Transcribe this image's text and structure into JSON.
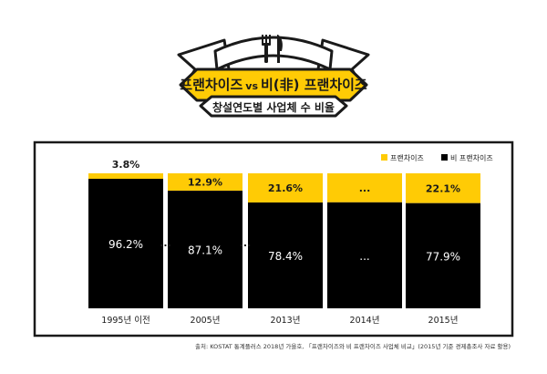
{
  "banner": {
    "line1_a": "프랜차이즈",
    "line1_vs": "vs",
    "line1_b": "비(非) 프랜차이즈",
    "subtitle": "창설연도별 사업체 수 비율"
  },
  "legend": {
    "franchise": "프랜차이즈",
    "non_franchise": "비 프랜차이즈"
  },
  "source": "출처: KOSTAT 통계플러스 2018년 가을호, 「프랜차이즈와 비 프랜차이즈 사업체 비교」(2015년 기준 경제총조사 자료 활용)",
  "colors": {
    "franchise": "#FFCB05",
    "non_franchise": "#000000",
    "frame": "#1a1a1a"
  },
  "chart_data": {
    "type": "bar",
    "stacked": true,
    "categories": [
      "1995년 이전",
      "2005년",
      "2013년",
      "2014년",
      "2015년"
    ],
    "series": [
      {
        "name": "비 프랜차이즈",
        "values": [
          96.2,
          87.1,
          78.4,
          null,
          77.9
        ],
        "labels": [
          "96.2%",
          "87.1%",
          "78.4%",
          "...",
          "77.9%"
        ]
      },
      {
        "name": "프랜차이즈",
        "values": [
          3.8,
          12.9,
          21.6,
          null,
          22.1
        ],
        "labels": [
          "3.8%",
          "12.9%",
          "21.6%",
          "...",
          "22.1%"
        ]
      }
    ],
    "between_markers": [
      "...",
      "..."
    ],
    "ylim": [
      0,
      100
    ],
    "legend_position": "top-right"
  }
}
